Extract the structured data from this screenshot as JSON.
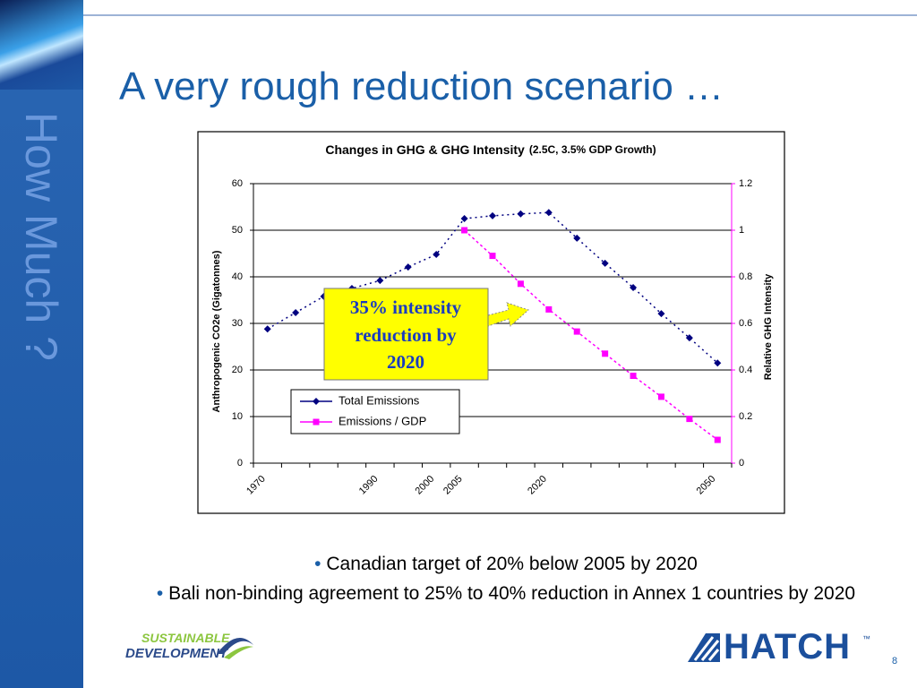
{
  "slide": {
    "title": "A very rough reduction scenario  …",
    "side_text": "How Much ?",
    "bullets": [
      "Canadian target of 20% below 2005 by 2020",
      "Bali non-binding agreement to 25% to 40% reduction in Annex 1 countries by 2020"
    ],
    "logo_left": [
      "SUSTAINABLE",
      "DEVELOPMENT"
    ],
    "logo_right": "HATCH",
    "trademark": "™",
    "page_number": "8"
  },
  "chart_data": {
    "type": "line",
    "title": "Changes in GHG & GHG Intensity",
    "subtitle": "(2.5C, 3.5% GDP Growth)",
    "y_label": "Anthropogenic CO2e (Gigatonnes)",
    "y2_label": "Relative GHG Intensity",
    "categories": [
      "1970",
      null,
      null,
      null,
      "1990",
      null,
      "2000",
      "2005",
      null,
      null,
      "2020",
      null,
      null,
      null,
      null,
      null,
      "2050"
    ],
    "series": [
      {
        "name": "Total Emissions",
        "color": "#000080",
        "marker": "diamond",
        "values": [
          28.8,
          32.3,
          35.8,
          37.5,
          39.2,
          42.1,
          44.8,
          52.5,
          53.1,
          53.5,
          53.8,
          48.3,
          42.9,
          37.7,
          32.1,
          26.9,
          21.5
        ]
      },
      {
        "name": "Emissions / GDP",
        "color": "#ff00ff",
        "marker": "square",
        "axis": "y2",
        "values": [
          null,
          null,
          null,
          null,
          null,
          null,
          null,
          1.0,
          0.89,
          0.77,
          0.66,
          0.565,
          0.47,
          0.375,
          0.285,
          0.19,
          0.1
        ]
      }
    ],
    "ylim": [
      0,
      60
    ],
    "yticks": [
      0,
      10,
      20,
      30,
      40,
      50,
      60
    ],
    "y2lim": [
      0,
      1.2
    ],
    "y2ticks": [
      0,
      0.2,
      0.4,
      0.6,
      0.8,
      1,
      1.2
    ],
    "grid": true,
    "annotation": [
      "35% intensity",
      "reduction by",
      "2020"
    ]
  }
}
